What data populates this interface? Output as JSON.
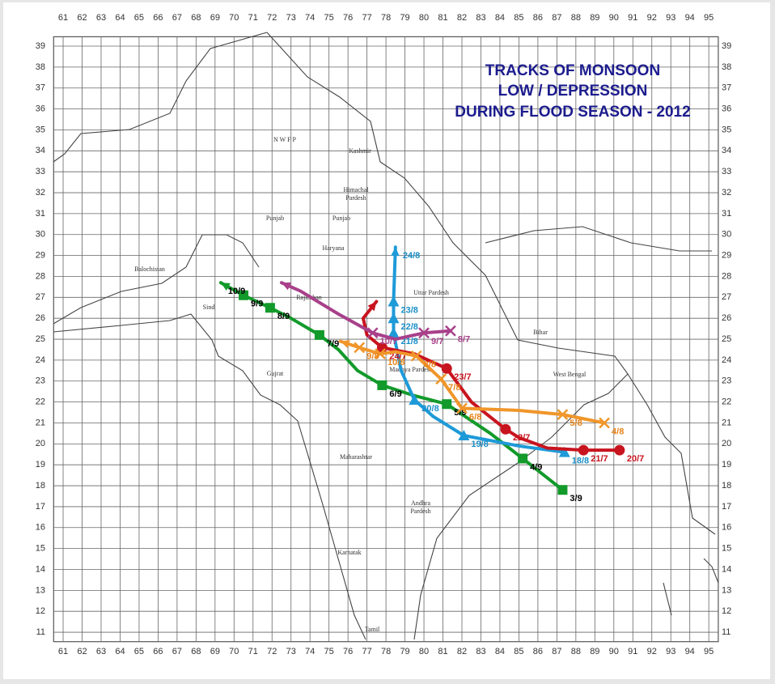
{
  "title": [
    "TRACKS OF MONSOON",
    "LOW / DEPRESSION",
    "DURING  FLOOD SEASON - 2012"
  ],
  "lonlim": [
    60.5,
    95.5
  ],
  "latlim": [
    10.55,
    39.45
  ],
  "lon_ticks": [
    61,
    62,
    63,
    64,
    65,
    66,
    67,
    68,
    69,
    70,
    71,
    72,
    73,
    74,
    75,
    76,
    77,
    78,
    79,
    80,
    81,
    82,
    83,
    84,
    85,
    86,
    87,
    88,
    89,
    90,
    91,
    92,
    93,
    94,
    95
  ],
  "lat_ticks": [
    11,
    12,
    13,
    14,
    15,
    16,
    17,
    18,
    19,
    20,
    21,
    22,
    23,
    24,
    25,
    26,
    27,
    28,
    29,
    30,
    31,
    32,
    33,
    34,
    35,
    36,
    37,
    38,
    39
  ],
  "regions": [
    "Balochistan",
    "Sind",
    "Punjab",
    "N W F P",
    "Kashmir",
    "Himachal",
    "Pardesh",
    "Punjab",
    "Haryana",
    "Uttar Pardesh",
    "Rajasthan",
    "Bihar",
    "West Bengal",
    "Madhya Pardesh",
    "Gujrat",
    "Maharashtar",
    "Andhra",
    "Pardesh",
    "Karnatak",
    "Tamil"
  ],
  "tracks": [
    {
      "color": "#129a2a",
      "label_color": "#000000",
      "marker": "square",
      "lon": [
        87.3,
        85.2,
        83.5,
        81.2,
        79.5,
        77.8,
        76.5,
        75.5,
        74.5,
        73.0,
        71.9,
        70.5,
        69.3
      ],
      "lat": [
        17.8,
        19.3,
        20.5,
        21.9,
        22.3,
        22.8,
        23.5,
        24.5,
        25.2,
        26.0,
        26.5,
        27.1,
        27.7
      ],
      "labels": [
        "3/9",
        "4/9",
        null,
        "5/9",
        null,
        "6/9",
        null,
        null,
        "7/9",
        null,
        "8/9",
        "9/9",
        "10/9"
      ]
    },
    {
      "color": "#1e9ad8",
      "label_color": "#1a8fc8",
      "marker": "triangle",
      "lon": [
        87.4,
        85.0,
        82.1,
        80.5,
        79.5,
        78.8,
        78.4,
        78.4,
        78.4,
        78.5
      ],
      "lat": [
        19.6,
        19.9,
        20.4,
        21.3,
        22.1,
        23.5,
        25.3,
        26.0,
        26.8,
        29.4
      ],
      "labels": [
        "18/8",
        null,
        "19/8",
        null,
        "20/8",
        null,
        "21/8",
        "22/8",
        "23/8",
        "24/8"
      ]
    },
    {
      "color": "#c8141e",
      "label_color": "#c8141e",
      "marker": "circle",
      "lon": [
        90.3,
        88.4,
        86.5,
        85.0,
        84.3,
        82.5,
        81.2,
        79.5,
        77.8,
        77.0,
        76.8,
        77.5
      ],
      "lat": [
        19.7,
        19.7,
        19.8,
        20.3,
        20.7,
        22.0,
        23.6,
        24.3,
        24.6,
        25.2,
        26.0,
        26.8
      ],
      "labels": [
        "20/7",
        "21/7",
        null,
        null,
        "22/7",
        null,
        "23/7",
        null,
        "24/7",
        null,
        null,
        null
      ]
    },
    {
      "color": "#a8408a",
      "label_color": "#a8408a",
      "marker": "x",
      "lon": [
        81.4,
        80.0,
        78.5,
        77.3,
        75.5,
        73.5,
        72.5
      ],
      "lat": [
        25.4,
        25.3,
        25.0,
        25.3,
        26.2,
        27.3,
        27.7
      ],
      "labels": [
        "8/7",
        "9/7",
        null,
        "10/7",
        null,
        null,
        null
      ]
    },
    {
      "color": "#f0962a",
      "label_color": "#e8841a",
      "marker": "x",
      "lon": [
        89.5,
        87.3,
        85.0,
        82.0,
        80.9,
        79.6,
        78.5,
        77.7,
        76.6,
        75.6
      ],
      "lat": [
        21.0,
        21.4,
        21.6,
        21.7,
        23.1,
        24.2,
        24.4,
        24.3,
        24.6,
        24.9
      ],
      "labels": [
        "4/8",
        "5/8",
        null,
        "6/8",
        "7/8",
        "8/8",
        null,
        "10/8",
        "9/8",
        null
      ]
    }
  ]
}
